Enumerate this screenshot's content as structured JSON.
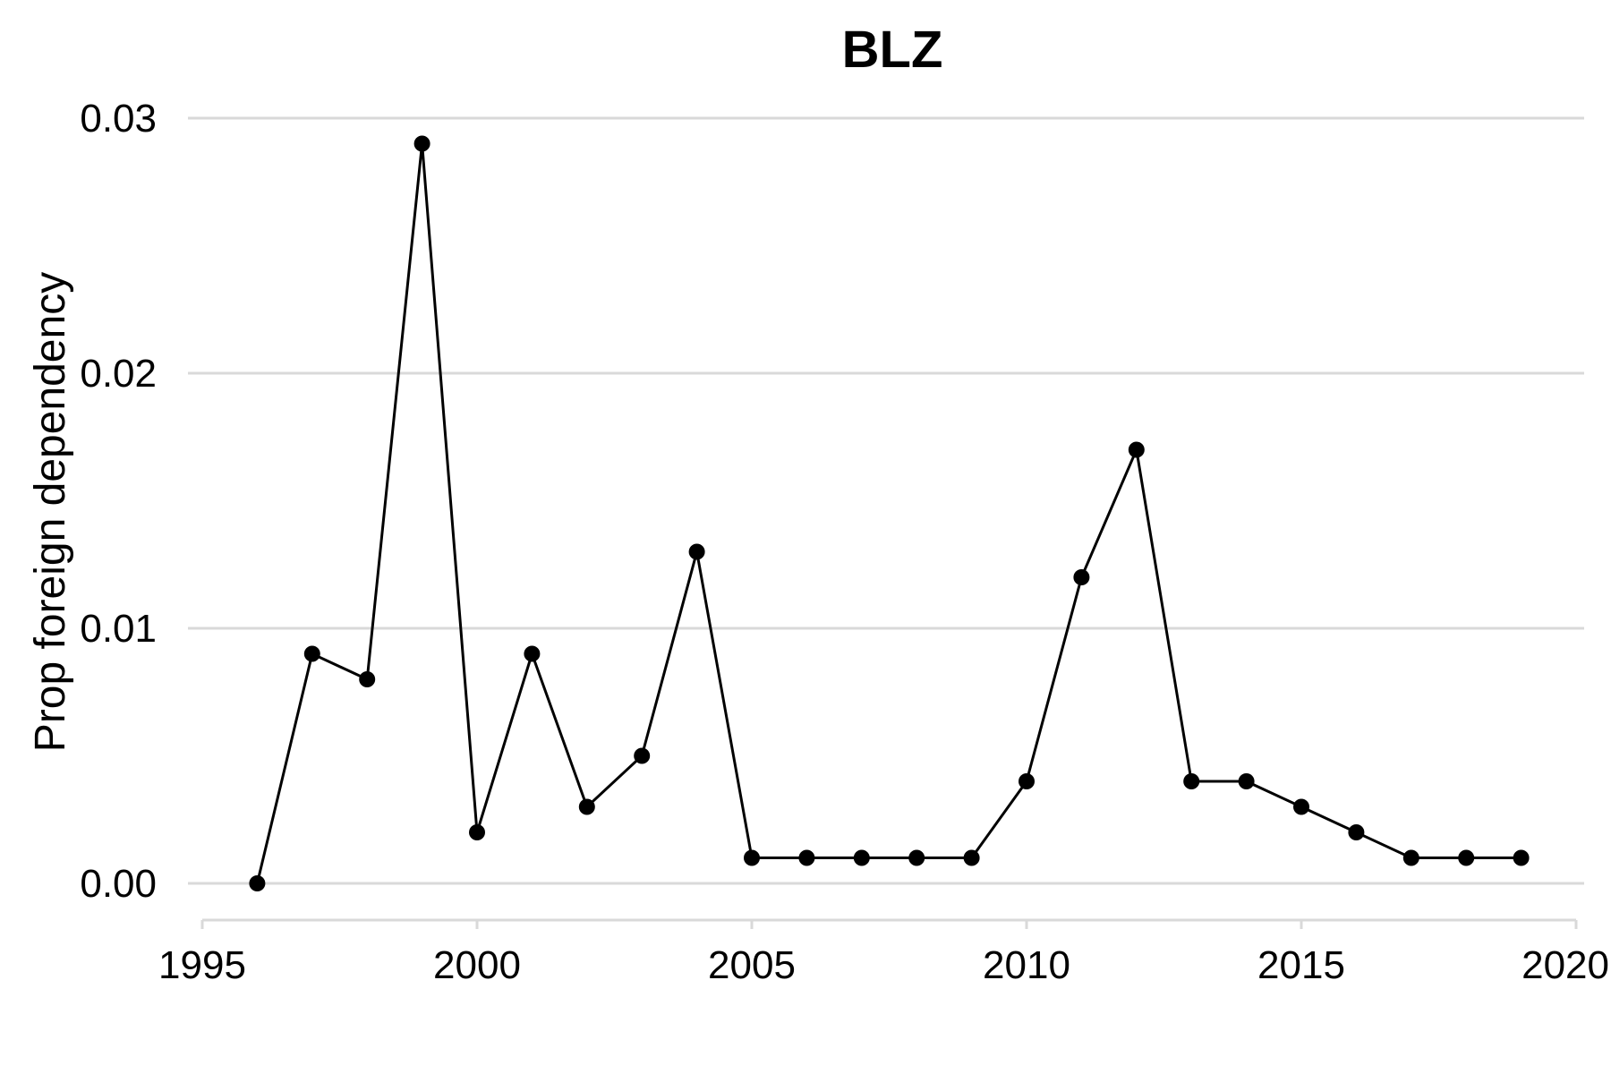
{
  "chart_data": {
    "type": "line",
    "title": "BLZ",
    "xlabel": "",
    "ylabel": "Prop foreign dependency",
    "xlim": [
      1995,
      2020
    ],
    "ylim": [
      0,
      0.03
    ],
    "x_ticks": [
      {
        "value": 1995,
        "label": "1995"
      },
      {
        "value": 2000,
        "label": "2000"
      },
      {
        "value": 2005,
        "label": "2005"
      },
      {
        "value": 2010,
        "label": "2010"
      },
      {
        "value": 2015,
        "label": "2015"
      },
      {
        "value": 2020,
        "label": "2020"
      }
    ],
    "y_ticks": [
      {
        "value": 0,
        "label": "0.00"
      },
      {
        "value": 0.01,
        "label": "0.01"
      },
      {
        "value": 0.02,
        "label": "0.02"
      },
      {
        "value": 0.03,
        "label": "0.03"
      }
    ],
    "grid": "horizontal",
    "color": "#000000",
    "x": [
      1996,
      1997,
      1998,
      1999,
      2000,
      2001,
      2002,
      2003,
      2004,
      2005,
      2006,
      2007,
      2008,
      2009,
      2010,
      2011,
      2012,
      2013,
      2014,
      2015,
      2016,
      2017,
      2018,
      2019
    ],
    "y": [
      0.0,
      0.009,
      0.008,
      0.029,
      0.002,
      0.009,
      0.003,
      0.005,
      0.013,
      0.001,
      0.001,
      0.001,
      0.001,
      0.001,
      0.004,
      0.012,
      0.017,
      0.004,
      0.004,
      0.003,
      0.002,
      0.001,
      0.001,
      0.001
    ]
  }
}
